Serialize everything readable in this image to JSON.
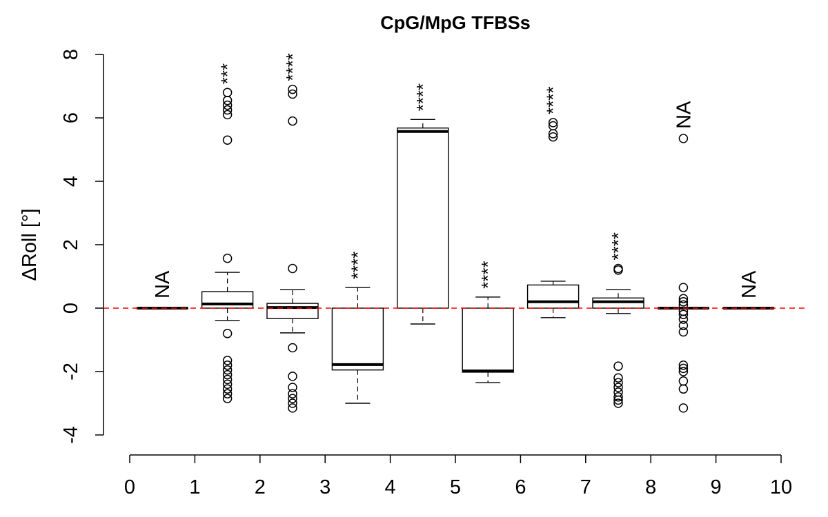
{
  "chart_data": {
    "type": "boxplot",
    "title": "CpG/MpG TFBSs",
    "xlabel": "",
    "ylabel": "ΔRoll [°]",
    "xlim": [
      0,
      10
    ],
    "ylim": [
      -4,
      8
    ],
    "xticks": [
      "0",
      "1",
      "2",
      "3",
      "4",
      "5",
      "6",
      "7",
      "8",
      "9",
      "10"
    ],
    "yticks": [
      "-4",
      "-2",
      "0",
      "2",
      "4",
      "6",
      "8"
    ],
    "reference_line": {
      "y": 0,
      "color": "#ff0000",
      "style": "dashed"
    },
    "boxes": [
      {
        "x": 0.5,
        "lower": 0,
        "q1": 0,
        "median": 0,
        "q3": 0,
        "upper": 0,
        "outliers": [],
        "annotation": "NA"
      },
      {
        "x": 1.5,
        "lower": -0.39,
        "q1": 0,
        "median": 0.13,
        "q3": 0.52,
        "upper": 1.13,
        "outliers": [
          1.57,
          -0.8,
          -1.65,
          -1.8,
          -1.95,
          -2.1,
          -2.25,
          -2.4,
          -2.55,
          -2.7,
          -2.85,
          5.3,
          6.1,
          6.25,
          6.4,
          6.55,
          6.8
        ],
        "annotation": "***"
      },
      {
        "x": 2.5,
        "lower": -0.78,
        "q1": -0.33,
        "median": 0.02,
        "q3": 0.15,
        "upper": 0.58,
        "outliers": [
          1.25,
          -1.25,
          -2.15,
          -2.5,
          -2.7,
          -2.85,
          -3.0,
          -3.15,
          5.9,
          6.75,
          6.9
        ],
        "annotation": "****"
      },
      {
        "x": 3.5,
        "lower": -3.0,
        "q1": -1.95,
        "median": -1.78,
        "q3": 0,
        "upper": 0.65,
        "outliers": [],
        "annotation": "****"
      },
      {
        "x": 4.5,
        "lower": -0.5,
        "q1": 0,
        "median": 5.57,
        "q3": 5.68,
        "upper": 5.95,
        "outliers": [],
        "annotation": "****"
      },
      {
        "x": 5.5,
        "lower": -2.35,
        "q1": -2.02,
        "median": -1.98,
        "q3": 0,
        "upper": 0.35,
        "outliers": [],
        "annotation": "****"
      },
      {
        "x": 6.5,
        "lower": -0.3,
        "q1": 0,
        "median": 0.2,
        "q3": 0.73,
        "upper": 0.85,
        "outliers": [
          5.4,
          5.5,
          5.75,
          5.85
        ],
        "annotation": "****"
      },
      {
        "x": 7.5,
        "lower": -0.17,
        "q1": 0,
        "median": 0.2,
        "q3": 0.32,
        "upper": 0.58,
        "outliers": [
          1.2,
          1.25,
          -1.83,
          -2.2,
          -2.35,
          -2.5,
          -2.65,
          -2.8,
          -2.9,
          -3.0
        ],
        "annotation": "****"
      },
      {
        "x": 8.5,
        "lower": 0,
        "q1": 0,
        "median": 0,
        "q3": 0,
        "upper": 0,
        "outliers": [
          0.65,
          0.3,
          0.2,
          0.1,
          -0.1,
          -0.2,
          -0.35,
          -0.55,
          -0.75,
          -1.8,
          -1.9,
          -2.0,
          -2.3,
          -2.55,
          -3.15,
          5.35
        ],
        "annotation": "NA"
      },
      {
        "x": 9.5,
        "lower": 0,
        "q1": 0,
        "median": 0,
        "q3": 0,
        "upper": 0,
        "outliers": [],
        "annotation": "NA"
      }
    ]
  }
}
